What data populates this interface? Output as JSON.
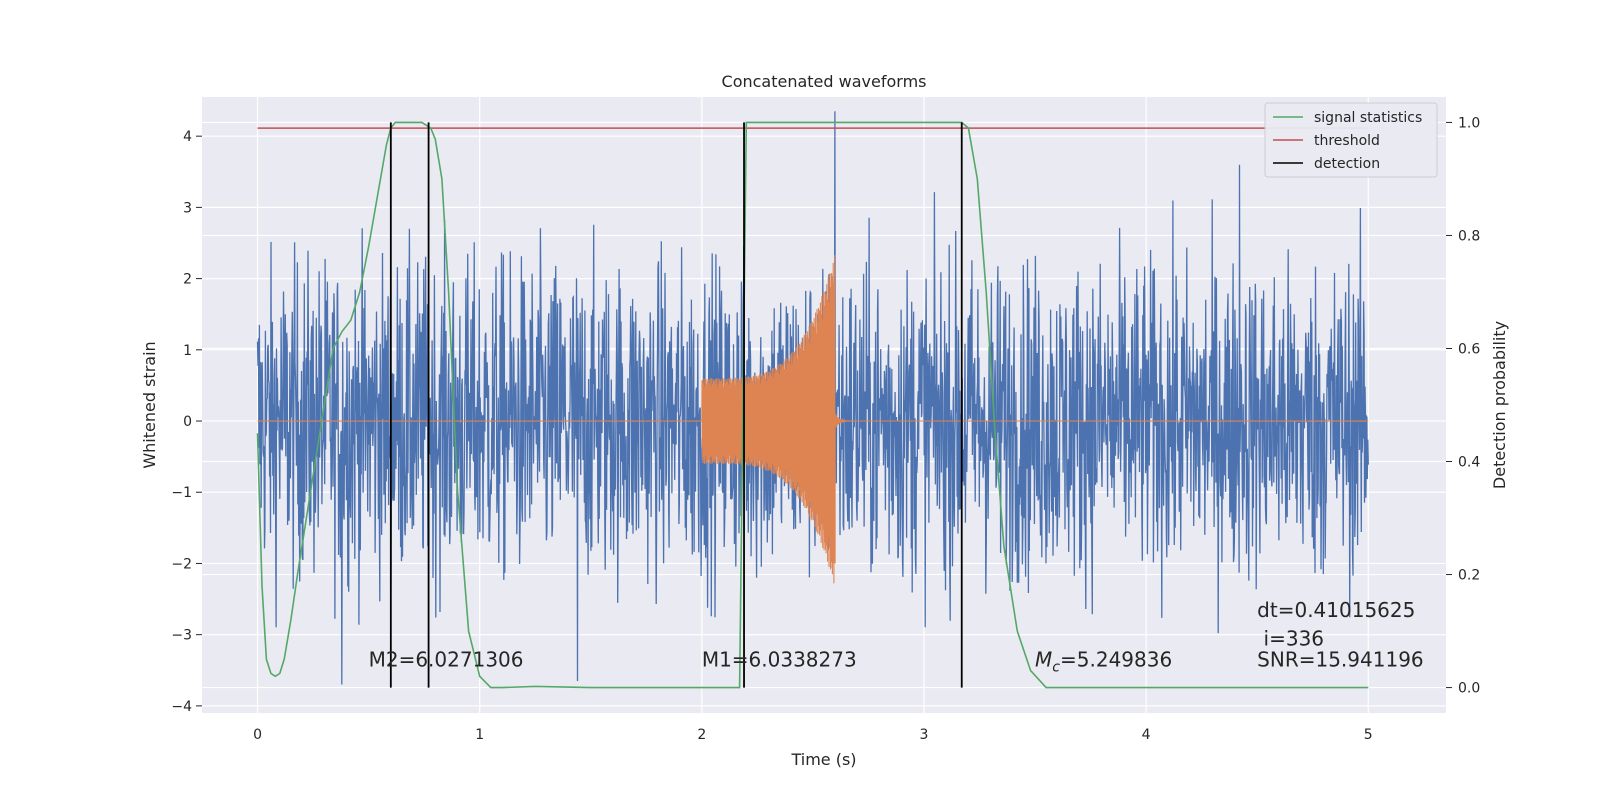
{
  "chart_data": {
    "type": "line",
    "title": "Concatenated waveforms",
    "xlabel": "Time (s)",
    "ylabel": "Whitened strain",
    "y2label": "Detection probability",
    "xlim": [
      -0.25,
      5.35
    ],
    "ylim": [
      -4.1,
      4.55
    ],
    "y2lim": [
      -0.045,
      1.045
    ],
    "x_ticks": [
      0,
      1,
      2,
      3,
      4,
      5
    ],
    "y_ticks": [
      -4,
      -3,
      -2,
      -1,
      0,
      1,
      2,
      3,
      4
    ],
    "y2_ticks": [
      0.0,
      0.2,
      0.4,
      0.6,
      0.8,
      1.0
    ],
    "x_tick_labels": [
      "0",
      "1",
      "2",
      "3",
      "4",
      "5"
    ],
    "y_tick_labels": [
      "−4",
      "−3",
      "−2",
      "−1",
      "0",
      "1",
      "2",
      "3",
      "4"
    ],
    "y2_tick_labels": [
      "0.0",
      "0.2",
      "0.4",
      "0.6",
      "0.8",
      "1.0"
    ],
    "grid": true,
    "legend_position": "top-right",
    "colors": {
      "noise": "#4c72b0",
      "waveform": "#dd8452",
      "signal_statistics": "#55a868",
      "threshold": "#c44e52",
      "detection": "#000000",
      "plot_background": "#eaeaf2",
      "grid": "#ffffff"
    },
    "series": [
      {
        "name": "signal statistics",
        "axis": "right",
        "x": [
          0.0,
          0.02,
          0.04,
          0.06,
          0.08,
          0.1,
          0.12,
          0.15,
          0.18,
          0.22,
          0.26,
          0.3,
          0.34,
          0.38,
          0.42,
          0.46,
          0.5,
          0.54,
          0.58,
          0.6,
          0.62,
          0.66,
          0.7,
          0.74,
          0.78,
          0.8,
          0.83,
          0.86,
          0.9,
          0.95,
          1.0,
          1.05,
          1.1,
          1.25,
          1.5,
          2.0,
          2.17,
          2.2,
          2.25,
          2.5,
          3.0,
          3.17,
          3.2,
          3.24,
          3.28,
          3.32,
          3.36,
          3.42,
          3.48,
          3.55,
          4.0,
          4.5,
          5.0
        ],
        "y": [
          0.45,
          0.18,
          0.05,
          0.025,
          0.02,
          0.025,
          0.05,
          0.12,
          0.2,
          0.3,
          0.4,
          0.5,
          0.6,
          0.63,
          0.65,
          0.7,
          0.78,
          0.87,
          0.96,
          0.99,
          1.0,
          1.0,
          1.0,
          1.0,
          0.99,
          0.97,
          0.9,
          0.7,
          0.35,
          0.1,
          0.02,
          0.0,
          0.0,
          0.002,
          0.0,
          0.0,
          0.0,
          1.0,
          1.0,
          1.0,
          1.0,
          1.0,
          0.99,
          0.9,
          0.7,
          0.45,
          0.25,
          0.1,
          0.03,
          0.0,
          0.0,
          0.0,
          0.0
        ]
      },
      {
        "name": "threshold",
        "axis": "right",
        "x": [
          0,
          5
        ],
        "y": [
          0.99,
          0.99
        ]
      },
      {
        "name": "detection",
        "axis": "right",
        "x_positions": [
          0.6,
          0.77,
          2.19,
          3.17
        ],
        "y_range": [
          0,
          1
        ]
      }
    ],
    "noise_series": {
      "axis": "left",
      "x_range": [
        0,
        5
      ],
      "typical_envelope": [
        -2.0,
        2.0
      ],
      "min": -3.7,
      "max": 4.4,
      "peaks": [
        {
          "x": 0.38,
          "y": -3.7
        },
        {
          "x": 1.44,
          "y": -3.65
        },
        {
          "x": 2.6,
          "y": 4.35
        },
        {
          "x": 4.42,
          "y": 3.6
        }
      ]
    },
    "waveform_series": {
      "axis": "left",
      "segments": [
        {
          "x": [
            0,
            2.0
          ],
          "amplitude": 0.0
        },
        {
          "x": [
            2.0,
            2.6
          ],
          "amplitude_start": 0.6,
          "amplitude_peak": 2.35,
          "amplitude_min": -2.0
        },
        {
          "x": [
            2.6,
            5.0
          ],
          "amplitude": 0.0
        }
      ]
    },
    "annotations": [
      {
        "text": "M2=6.0271306",
        "x": 0.5,
        "y": -3.45
      },
      {
        "text": "M1=6.0338273",
        "x": 2.0,
        "y": -3.45
      },
      {
        "text_prefix": "M",
        "text_sub": "c",
        "text_suffix": "=5.249836",
        "x": 3.5,
        "y": -3.45
      },
      {
        "text": "dt=0.41015625",
        "x": 4.5,
        "y": -2.75
      },
      {
        "text": " i=336",
        "x": 4.5,
        "y": -3.15
      },
      {
        "text": "SNR=15.941196",
        "x": 4.5,
        "y": -3.45
      }
    ]
  }
}
